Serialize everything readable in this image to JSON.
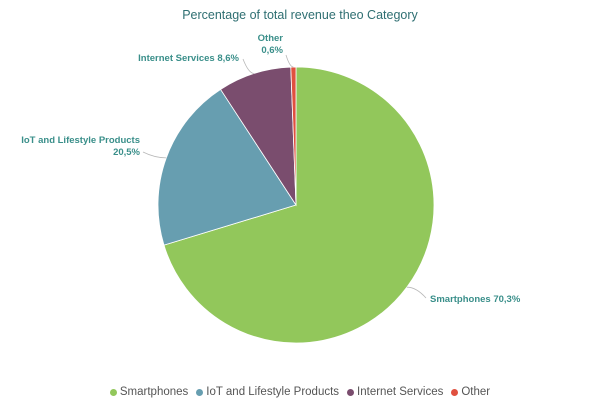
{
  "chart_data": {
    "type": "pie",
    "title": "Percentage of total revenue theo Category",
    "slices": [
      {
        "name": "Smartphones",
        "value": 70.3,
        "label": "Smartphones 70,3%",
        "color": "#92c75b",
        "label_color": "#3a8f8a"
      },
      {
        "name": "IoT and Lifestyle Products",
        "value": 20.5,
        "label_lines": [
          "IoT and Lifestyle Products",
          "20,5%"
        ],
        "color": "#679eb0",
        "label_color": "#3a8f8a"
      },
      {
        "name": "Internet Services",
        "value": 8.6,
        "label": "Internet Services 8,6%",
        "color": "#7a4d6e",
        "label_color": "#3a8f8a"
      },
      {
        "name": "Other",
        "value": 0.6,
        "label_lines": [
          "Other",
          "0,6%"
        ],
        "color": "#e0503f",
        "label_color": "#3a8f8a"
      }
    ],
    "start_angle_deg": 0,
    "direction": "clockwise",
    "legend_position": "bottom"
  }
}
